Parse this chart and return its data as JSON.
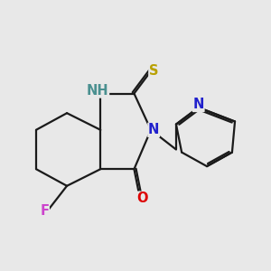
{
  "background_color": "#e8e8e8",
  "bond_color": "#1a1a1a",
  "bond_width": 1.6,
  "atom_colors": {
    "NH": "#4a9090",
    "N": "#2020cc",
    "O": "#dd0000",
    "S": "#b8a000",
    "F": "#cc44cc",
    "C": "#1a1a1a"
  },
  "font_size": 10.5
}
